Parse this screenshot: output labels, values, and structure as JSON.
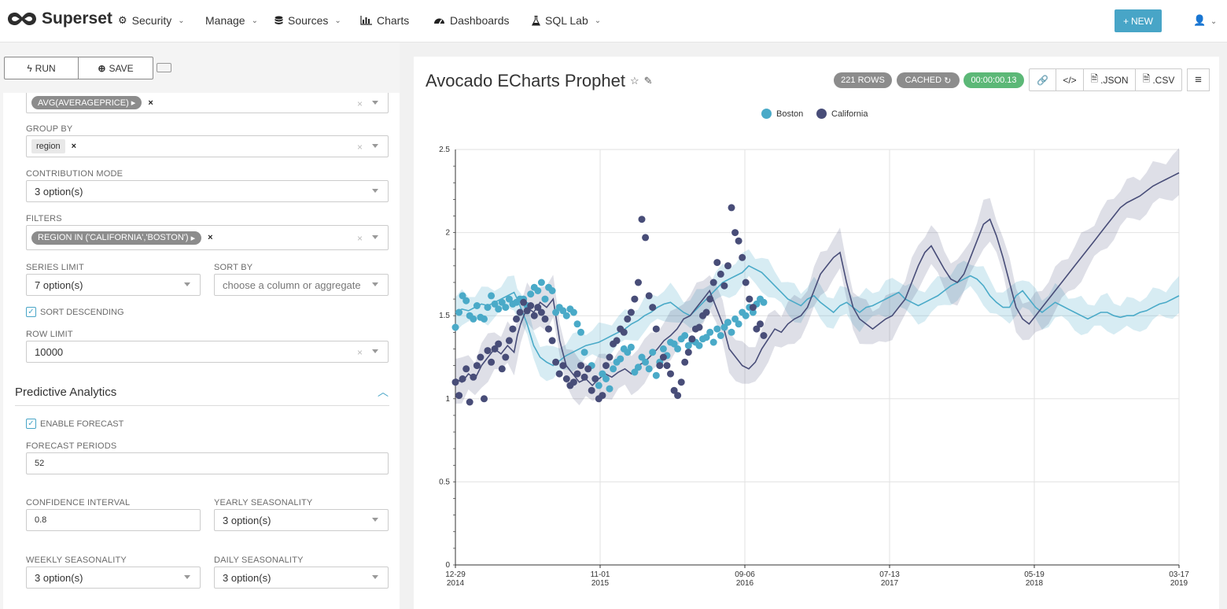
{
  "app": {
    "brand": "Superset"
  },
  "nav": {
    "items": [
      {
        "label": "Security",
        "icon": "cogs-icon",
        "dropdown": true
      },
      {
        "label": "Manage",
        "icon": "",
        "dropdown": true
      },
      {
        "label": "Sources",
        "icon": "database-icon",
        "dropdown": true
      },
      {
        "label": "Charts",
        "icon": "bar-chart-icon",
        "dropdown": false
      },
      {
        "label": "Dashboards",
        "icon": "dashboard-icon",
        "dropdown": false
      },
      {
        "label": "SQL Lab",
        "icon": "flask-icon",
        "dropdown": true
      }
    ],
    "new_label": "NEW"
  },
  "toolbar": {
    "run_label": "RUN",
    "save_label": "SAVE"
  },
  "controls": {
    "metric_tag": "AVG(AVERAGEPRICE)",
    "group_by_label": "GROUP BY",
    "group_by_tag": "region",
    "contribution_label": "CONTRIBUTION MODE",
    "contribution_value": "3 option(s)",
    "filters_label": "FILTERS",
    "filters_tag": "REGION IN ('CALIFORNIA','BOSTON')",
    "series_limit_label": "SERIES LIMIT",
    "series_limit_value": "7 option(s)",
    "sort_by_label": "SORT BY",
    "sort_by_placeholder": "choose a column or aggregate",
    "sort_desc_label": "SORT DESCENDING",
    "row_limit_label": "ROW LIMIT",
    "row_limit_value": "10000"
  },
  "predictive": {
    "title": "Predictive Analytics",
    "enable_forecast_label": "ENABLE FORECAST",
    "forecast_periods_label": "FORECAST PERIODS",
    "forecast_periods_value": "52",
    "confidence_label": "CONFIDENCE INTERVAL",
    "confidence_value": "0.8",
    "yearly_label": "YEARLY SEASONALITY",
    "yearly_value": "3 option(s)",
    "weekly_label": "WEEKLY SEASONALITY",
    "weekly_value": "3 option(s)",
    "daily_label": "DAILY SEASONALITY",
    "daily_value": "3 option(s)"
  },
  "chart_header": {
    "title": "Avocado ECharts Prophet",
    "rows_badge": "221 ROWS",
    "cached_badge": "CACHED",
    "timer_badge": "00:00:00.13",
    "json_label": ".JSON",
    "csv_label": ".CSV"
  },
  "colors": {
    "boston": "#4aaac8",
    "california": "#484d78",
    "accent": "#48a5c7",
    "timer": "#5cb877",
    "badge": "#8c8c8c"
  },
  "chart_data": {
    "type": "line",
    "legend": [
      "Boston",
      "California"
    ],
    "legend_position": "top-center",
    "ylim": [
      0,
      2.5
    ],
    "yticks": [
      "0",
      "0.5",
      "1",
      "1.5",
      "2",
      "2.5"
    ],
    "xticks": [
      {
        "l1": "12-29",
        "l2": "2014"
      },
      {
        "l1": "11-01",
        "l2": "2015"
      },
      {
        "l1": "09-06",
        "l2": "2016"
      },
      {
        "l1": "07-13",
        "l2": "2017"
      },
      {
        "l1": "05-19",
        "l2": "2018"
      },
      {
        "l1": "03-17",
        "l2": "2019"
      }
    ],
    "x_range": [
      "2014-12-29",
      "2019-03-17"
    ],
    "grid": true,
    "series": [
      {
        "name": "Boston",
        "observed_x": [
          0,
          0.5,
          1,
          1.5,
          2,
          2.5,
          3,
          3.5,
          4,
          4.5,
          5,
          5.5,
          6,
          6.5,
          7,
          7.5,
          8,
          8.5,
          9,
          9.5,
          10,
          10.5,
          11,
          11.5,
          12,
          12.5,
          13,
          13.5,
          14,
          14.5,
          15,
          15.5,
          16,
          16.5,
          17,
          17.5,
          18,
          18.5,
          19,
          19.5,
          20,
          20.5,
          21,
          21.5,
          22,
          22.5,
          23,
          23.5,
          24,
          24.5,
          25,
          25.5,
          26,
          26.5,
          27,
          27.5,
          28,
          28.5,
          29,
          29.5,
          30,
          30.5,
          31,
          31.5,
          32,
          32.5,
          33,
          33.5,
          34,
          34.5,
          35,
          35.5,
          36,
          36.5,
          37,
          37.5,
          38,
          38.5,
          39,
          39.5,
          40,
          40.5,
          41,
          41.5,
          42,
          42.5,
          43
        ],
        "observed_y": [
          1.43,
          1.52,
          1.62,
          1.59,
          1.5,
          1.48,
          1.56,
          1.49,
          1.48,
          1.55,
          1.62,
          1.57,
          1.54,
          1.58,
          1.55,
          1.6,
          1.57,
          1.58,
          1.6,
          1.6,
          1.56,
          1.63,
          1.67,
          1.65,
          1.7,
          1.6,
          1.67,
          1.65,
          1.52,
          1.55,
          1.53,
          1.5,
          1.54,
          1.52,
          1.45,
          1.4,
          1.28,
          1.18,
          1.2,
          1.12,
          1.08,
          1.15,
          1.12,
          1.06,
          1.18,
          1.22,
          1.24,
          1.3,
          1.28,
          1.31,
          1.16,
          1.19,
          1.25,
          1.22,
          1.18,
          1.28,
          1.14,
          1.22,
          1.3,
          1.26,
          1.34,
          1.33,
          1.3,
          1.36,
          1.38,
          1.32,
          1.35,
          1.34,
          1.32,
          1.36,
          1.37,
          1.4,
          1.34,
          1.42,
          1.38,
          1.43,
          1.46,
          1.4,
          1.48,
          1.45,
          1.52,
          1.5,
          1.55,
          1.52,
          1.57,
          1.6,
          1.58
        ],
        "fit_x": [
          0,
          2,
          4,
          6,
          8,
          10,
          12,
          14,
          16,
          18,
          19,
          20,
          22,
          24,
          26,
          28,
          30,
          32,
          34,
          36,
          38,
          40,
          42,
          44,
          46,
          48,
          50,
          52,
          54,
          56,
          58,
          60,
          62,
          64,
          66,
          68,
          70,
          72,
          74,
          76,
          78,
          80,
          82,
          84,
          86,
          88,
          90,
          92,
          94,
          96,
          98,
          100,
          102,
          104,
          106,
          108,
          110,
          112,
          114,
          116,
          118,
          120,
          122,
          124,
          126,
          128,
          130,
          132,
          134,
          136,
          138,
          140,
          142,
          144,
          146,
          148,
          150,
          152,
          154,
          156,
          158,
          160,
          162,
          164,
          166,
          168,
          170,
          172,
          174,
          176,
          178,
          180,
          182,
          184,
          186,
          188,
          190,
          192,
          194,
          196,
          198,
          200,
          202,
          204,
          206,
          208,
          210,
          212,
          214,
          216,
          218,
          220,
          222
        ],
        "fit_y": [
          1.52,
          1.54,
          1.53,
          1.55,
          1.57,
          1.56,
          1.58,
          1.6,
          1.62,
          1.64,
          1.6,
          1.55,
          1.45,
          1.32,
          1.25,
          1.22,
          1.2,
          1.23,
          1.26,
          1.28,
          1.3,
          1.32,
          1.33,
          1.34,
          1.36,
          1.38,
          1.4,
          1.42,
          1.45,
          1.47,
          1.5,
          1.52,
          1.55,
          1.57,
          1.58,
          1.55,
          1.52,
          1.5,
          1.54,
          1.58,
          1.62,
          1.66,
          1.7,
          1.72,
          1.74,
          1.76,
          1.8,
          1.78,
          1.76,
          1.72,
          1.68,
          1.64,
          1.6,
          1.58,
          1.56,
          1.6,
          1.62,
          1.58,
          1.55,
          1.52,
          1.56,
          1.58,
          1.55,
          1.52,
          1.55,
          1.56,
          1.58,
          1.6,
          1.62,
          1.64,
          1.6,
          1.58,
          1.56,
          1.58,
          1.6,
          1.62,
          1.65,
          1.68,
          1.7,
          1.72,
          1.74,
          1.72,
          1.68,
          1.62,
          1.58,
          1.55,
          1.55,
          1.62,
          1.65,
          1.6,
          1.55,
          1.52,
          1.55,
          1.58,
          1.56,
          1.54,
          1.52,
          1.5,
          1.48,
          1.5,
          1.52,
          1.52,
          1.5,
          1.49,
          1.5,
          1.5,
          1.52,
          1.53,
          1.55,
          1.57,
          1.58,
          1.6,
          1.62
        ]
      },
      {
        "name": "California",
        "observed_x": [
          0,
          0.5,
          1,
          1.5,
          2,
          2.5,
          3,
          3.5,
          4,
          4.5,
          5,
          5.5,
          6,
          6.5,
          7,
          7.5,
          8,
          8.5,
          9,
          9.5,
          10,
          10.5,
          11,
          11.5,
          12,
          12.5,
          13,
          13.5,
          14,
          14.5,
          15,
          15.5,
          16,
          16.5,
          17,
          17.5,
          18,
          18.5,
          19,
          19.5,
          20,
          20.5,
          21,
          21.5,
          22,
          22.5,
          23,
          23.5,
          24,
          24.5,
          25,
          25.5,
          26,
          26.5,
          27,
          27.5,
          28,
          28.5,
          29,
          29.5,
          30,
          30.5,
          31,
          31.5,
          32,
          32.5,
          33,
          33.5,
          34,
          34.5,
          35,
          35.5,
          36,
          36.5,
          37,
          37.5,
          38,
          38.5,
          39,
          39.5,
          40,
          40.5,
          41,
          41.5,
          42,
          42.5,
          43
        ],
        "observed_y": [
          1.1,
          1.02,
          1.12,
          1.18,
          0.98,
          1.13,
          1.2,
          1.25,
          1.0,
          1.29,
          1.22,
          1.3,
          1.33,
          1.18,
          1.25,
          1.35,
          1.42,
          1.48,
          1.52,
          1.58,
          1.53,
          1.56,
          1.5,
          1.55,
          1.52,
          1.48,
          1.42,
          1.35,
          1.22,
          1.15,
          1.2,
          1.12,
          1.08,
          1.1,
          1.15,
          1.2,
          1.13,
          1.18,
          1.05,
          1.12,
          1.0,
          1.02,
          1.2,
          1.25,
          1.33,
          1.35,
          1.42,
          1.4,
          1.48,
          1.52,
          1.6,
          1.7,
          2.08,
          1.97,
          1.62,
          1.55,
          1.42,
          1.2,
          1.25,
          1.2,
          1.15,
          1.05,
          1.02,
          1.1,
          1.22,
          1.28,
          1.36,
          1.42,
          1.43,
          1.5,
          1.52,
          1.6,
          1.7,
          1.82,
          1.75,
          1.68,
          1.8,
          2.15,
          2.0,
          1.95,
          1.85,
          1.7,
          1.6,
          1.55,
          1.42,
          1.45,
          1.38
        ],
        "fit_x": [
          0,
          2,
          4,
          6,
          8,
          10,
          12,
          14,
          16,
          18,
          19,
          20,
          22,
          24,
          26,
          28,
          30,
          32,
          34,
          36,
          38,
          40,
          42,
          44,
          46,
          48,
          50,
          52,
          54,
          56,
          58,
          60,
          62,
          64,
          66,
          68,
          70,
          72,
          74,
          76,
          78,
          80,
          82,
          84,
          86,
          88,
          90,
          92,
          94,
          96,
          98,
          100,
          102,
          104,
          106,
          108,
          110,
          112,
          114,
          116,
          118,
          120,
          122,
          124,
          126,
          128,
          130,
          132,
          134,
          136,
          138,
          140,
          142,
          144,
          146,
          148,
          150,
          152,
          154,
          156,
          158,
          160,
          162,
          164,
          166,
          168,
          170,
          172,
          174,
          176,
          178,
          180,
          182,
          184,
          186,
          188,
          190,
          192,
          194,
          196,
          198,
          200,
          202,
          204,
          206,
          208,
          210,
          212,
          214,
          216,
          218,
          220,
          222
        ],
        "fit_y": [
          1.12,
          1.1,
          1.15,
          1.12,
          1.2,
          1.25,
          1.3,
          1.27,
          1.32,
          1.28,
          1.38,
          1.45,
          1.55,
          1.52,
          1.58,
          1.55,
          1.6,
          1.35,
          1.2,
          1.15,
          1.1,
          1.12,
          1.08,
          1.12,
          1.15,
          1.13,
          1.16,
          1.18,
          1.15,
          1.2,
          1.22,
          1.26,
          1.3,
          1.35,
          1.38,
          1.42,
          1.48,
          1.5,
          1.55,
          1.6,
          1.65,
          1.55,
          1.45,
          1.3,
          1.25,
          1.2,
          1.18,
          1.22,
          1.3,
          1.36,
          1.42,
          1.4,
          1.45,
          1.48,
          1.5,
          1.55,
          1.65,
          1.75,
          1.8,
          1.85,
          1.88,
          1.7,
          1.55,
          1.48,
          1.45,
          1.42,
          1.45,
          1.48,
          1.5,
          1.55,
          1.6,
          1.7,
          1.8,
          1.88,
          1.92,
          1.85,
          1.78,
          1.72,
          1.7,
          1.75,
          1.85,
          1.95,
          2.05,
          2.08,
          1.98,
          1.85,
          1.7,
          1.55,
          1.48,
          1.45,
          1.5,
          1.55,
          1.6,
          1.65,
          1.7,
          1.75,
          1.8,
          1.85,
          1.9,
          1.95,
          2.0,
          2.05,
          2.1,
          2.15,
          2.18,
          2.2,
          2.22,
          2.25,
          2.28,
          2.3,
          2.32,
          2.34,
          2.36
        ]
      }
    ]
  }
}
